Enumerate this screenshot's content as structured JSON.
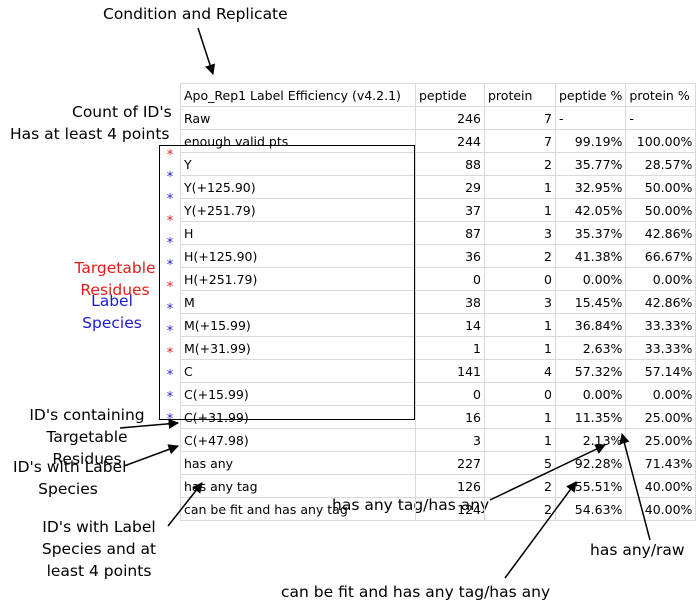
{
  "annotations": {
    "condition_replicate": "Condition and Replicate",
    "count_ids": "Count of ID's",
    "four_points": "Has at least 4 points",
    "targetable_1": "Targetable",
    "targetable_2": "Residues",
    "label_species_1": "Label",
    "label_species_2": "Species",
    "ids_containing_1": "ID's containing",
    "ids_containing_2": "Targetable",
    "ids_containing_3": "Residues",
    "ids_label_1": "ID's with Label",
    "ids_label_2": "Species",
    "ids_label_pts_1": "ID's with Label",
    "ids_label_pts_2": "Species and at",
    "ids_label_pts_3": "least 4 points",
    "has_any_tag_ratio": "has any tag/has any",
    "has_any_raw": "has any/raw",
    "fit_tag_ratio": "can be fit and has any tag/has any"
  },
  "colors": {
    "targetable": "#e41b17",
    "label": "#1a1adc",
    "grid": "#d9d9d9"
  },
  "table": {
    "headers": [
      "Apo_Rep1 Label Efficiency (v4.2.1)",
      "peptide",
      "protein",
      "peptide %",
      "protein %"
    ],
    "rows": [
      {
        "label": "Raw",
        "peptide": "246",
        "protein": "7",
        "peptide_pct": "-",
        "protein_pct": "-",
        "star": ""
      },
      {
        "label": "enough valid pts",
        "peptide": "244",
        "protein": "7",
        "peptide_pct": "99.19%",
        "protein_pct": "100.00%",
        "star": ""
      },
      {
        "label": "Y",
        "peptide": "88",
        "protein": "2",
        "peptide_pct": "35.77%",
        "protein_pct": "28.57%",
        "star": "red"
      },
      {
        "label": "Y(+125.90)",
        "peptide": "29",
        "protein": "1",
        "peptide_pct": "32.95%",
        "protein_pct": "50.00%",
        "star": "blue"
      },
      {
        "label": "Y(+251.79)",
        "peptide": "37",
        "protein": "1",
        "peptide_pct": "42.05%",
        "protein_pct": "50.00%",
        "star": "blue"
      },
      {
        "label": "H",
        "peptide": "87",
        "protein": "3",
        "peptide_pct": "35.37%",
        "protein_pct": "42.86%",
        "star": "red"
      },
      {
        "label": "H(+125.90)",
        "peptide": "36",
        "protein": "2",
        "peptide_pct": "41.38%",
        "protein_pct": "66.67%",
        "star": "blue"
      },
      {
        "label": "H(+251.79)",
        "peptide": "0",
        "protein": "0",
        "peptide_pct": "0.00%",
        "protein_pct": "0.00%",
        "star": "blue"
      },
      {
        "label": "M",
        "peptide": "38",
        "protein": "3",
        "peptide_pct": "15.45%",
        "protein_pct": "42.86%",
        "star": "red"
      },
      {
        "label": "M(+15.99)",
        "peptide": "14",
        "protein": "1",
        "peptide_pct": "36.84%",
        "protein_pct": "33.33%",
        "star": "blue"
      },
      {
        "label": "M(+31.99)",
        "peptide": "1",
        "protein": "1",
        "peptide_pct": "2.63%",
        "protein_pct": "33.33%",
        "star": "blue"
      },
      {
        "label": "C",
        "peptide": "141",
        "protein": "4",
        "peptide_pct": "57.32%",
        "protein_pct": "57.14%",
        "star": "red"
      },
      {
        "label": "C(+15.99)",
        "peptide": "0",
        "protein": "0",
        "peptide_pct": "0.00%",
        "protein_pct": "0.00%",
        "star": "blue"
      },
      {
        "label": "C(+31.99)",
        "peptide": "16",
        "protein": "1",
        "peptide_pct": "11.35%",
        "protein_pct": "25.00%",
        "star": "blue"
      },
      {
        "label": "C(+47.98)",
        "peptide": "3",
        "protein": "1",
        "peptide_pct": "2.13%",
        "protein_pct": "25.00%",
        "star": "blue"
      },
      {
        "label": "has any",
        "peptide": "227",
        "protein": "5",
        "peptide_pct": "92.28%",
        "protein_pct": "71.43%",
        "star": ""
      },
      {
        "label": "has any tag",
        "peptide": "126",
        "protein": "2",
        "peptide_pct": "55.51%",
        "protein_pct": "40.00%",
        "star": ""
      },
      {
        "label": "can be fit and has any tag",
        "peptide": "124",
        "protein": "2",
        "peptide_pct": "54.63%",
        "protein_pct": "40.00%",
        "star": ""
      }
    ]
  }
}
